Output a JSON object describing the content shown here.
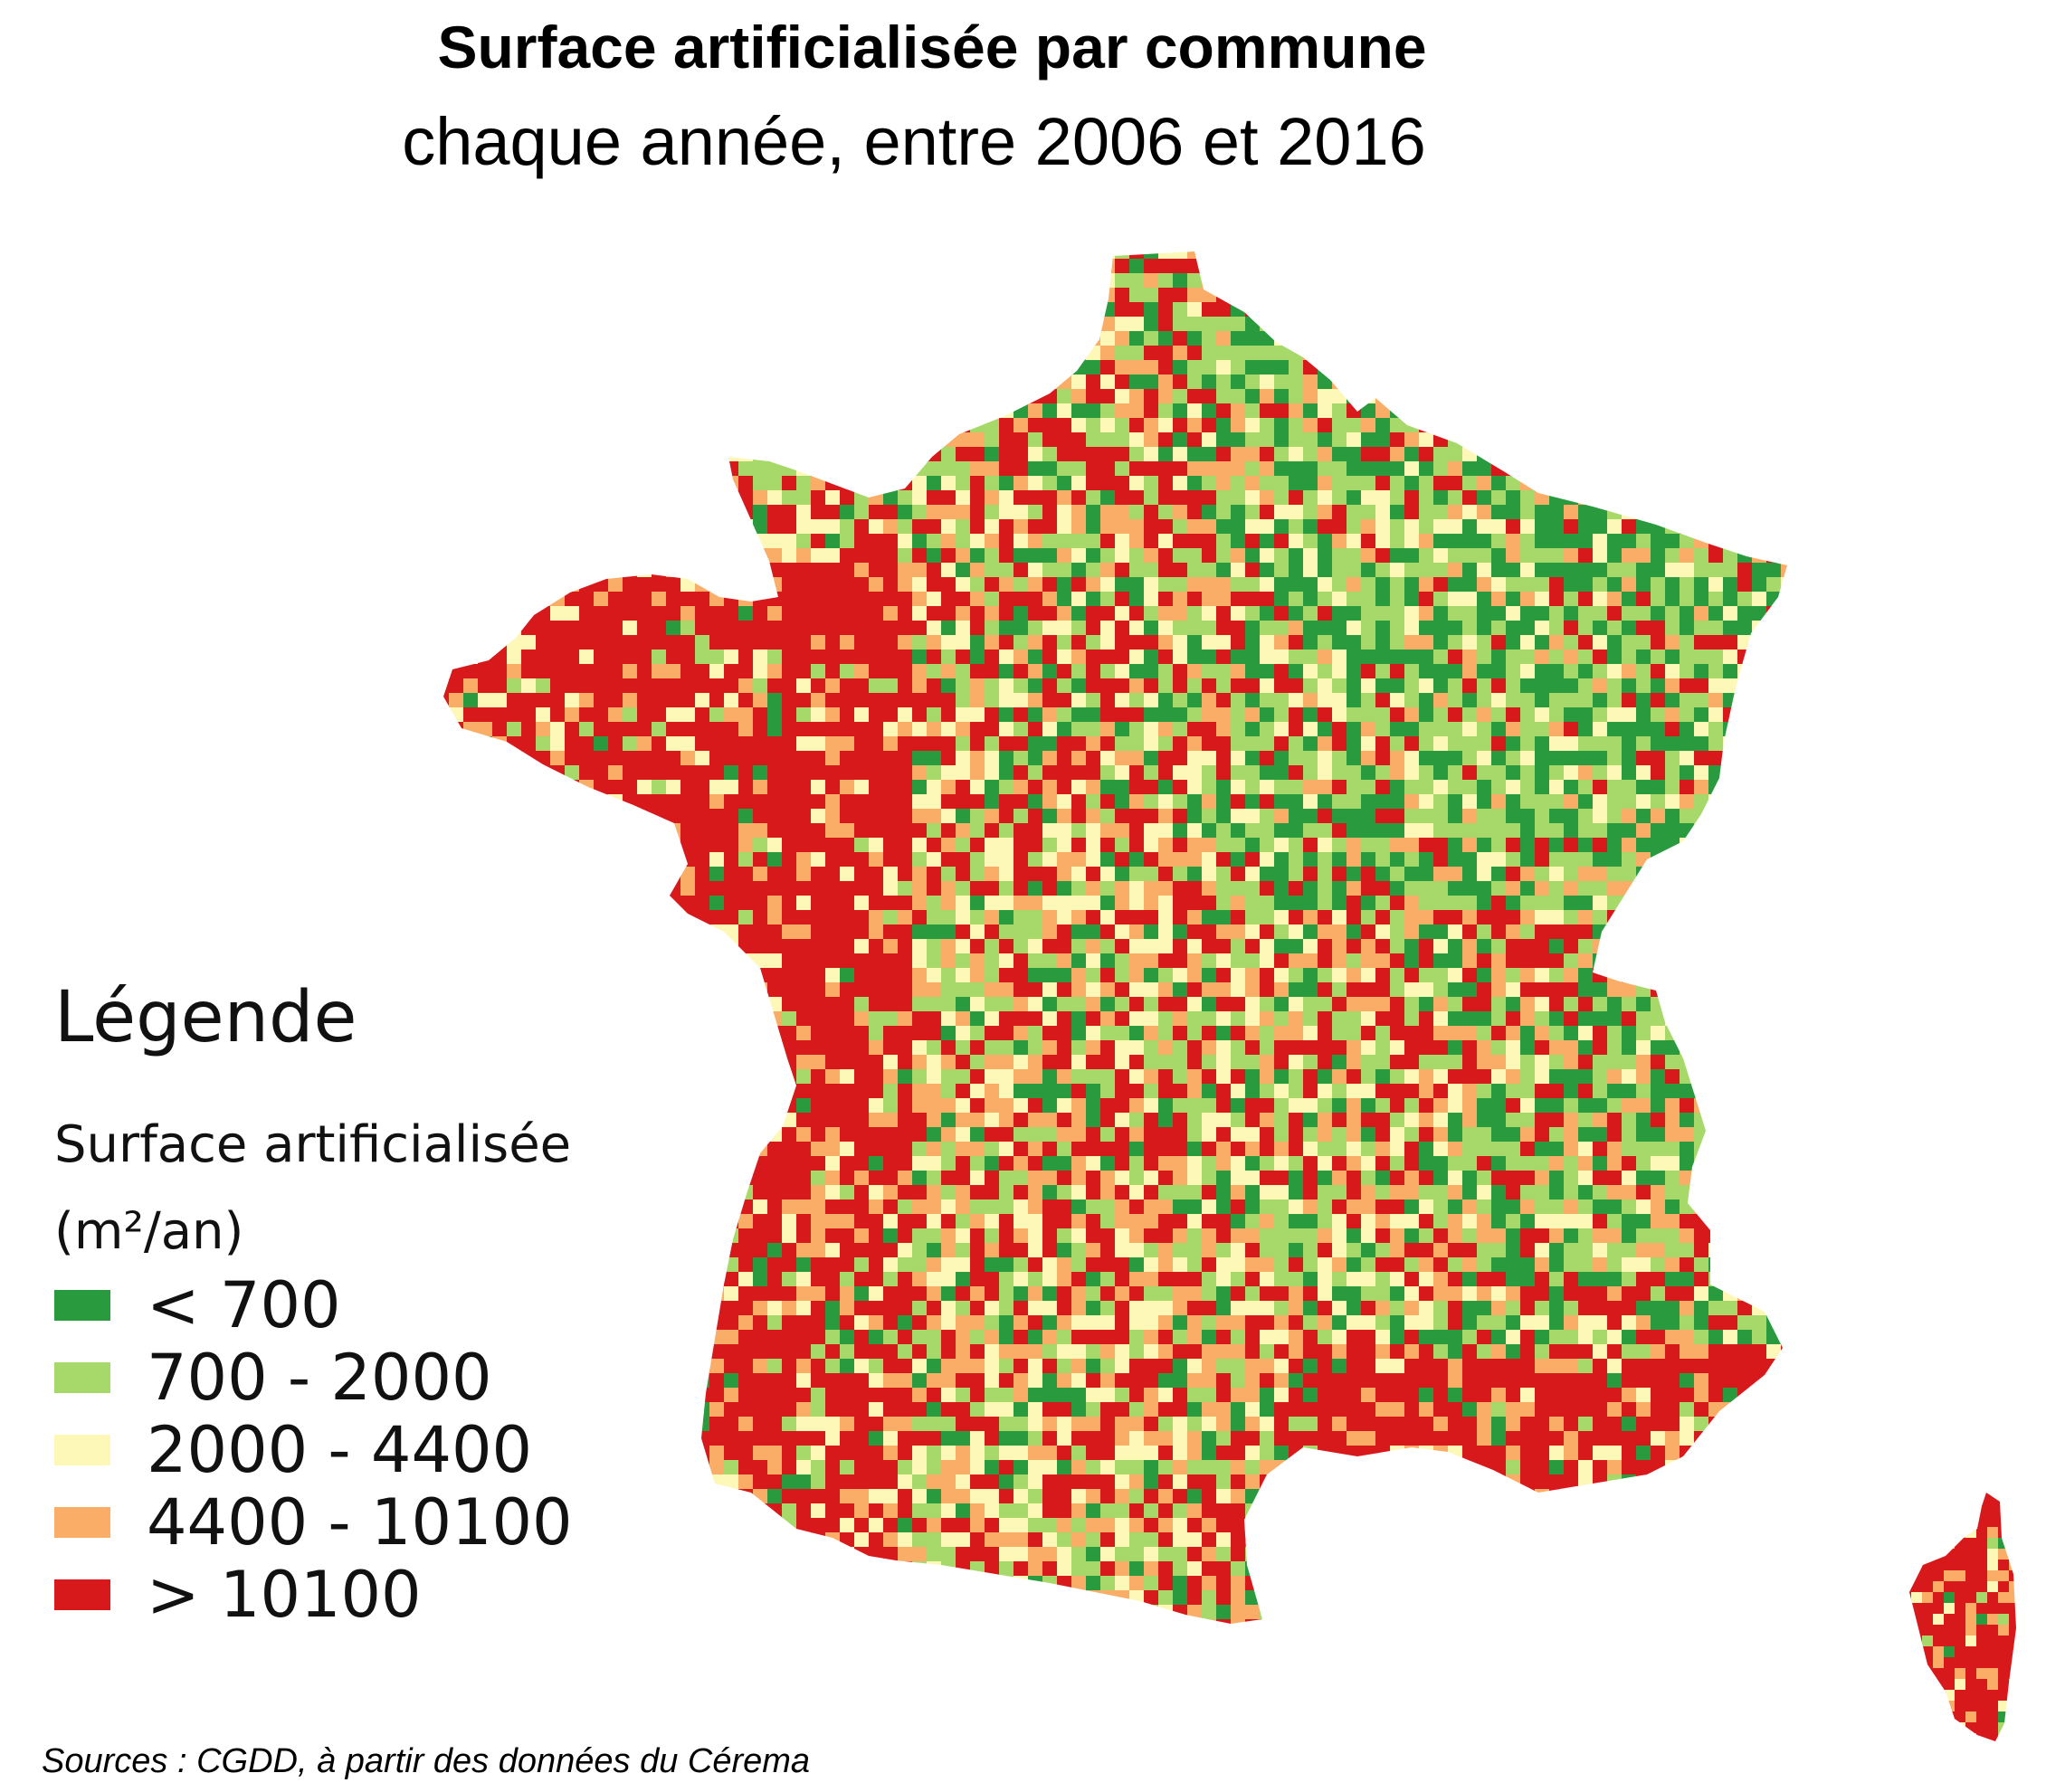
{
  "title": "Surface artificialisée par commune",
  "subtitle": "chaque année, entre 2006 et 2016",
  "legend": {
    "heading": "Légende",
    "variable": "Surface artificialisée",
    "unit": "(m²/an)",
    "classes": [
      {
        "label": "< 700",
        "color": "#2a9a3e"
      },
      {
        "label": "700 - 2000",
        "color": "#a6d96a"
      },
      {
        "label": "2000 - 4400",
        "color": "#fdf7b8"
      },
      {
        "label": "4400 - 10100",
        "color": "#f9ad66"
      },
      {
        "label": "> 10100",
        "color": "#d7191c"
      }
    ]
  },
  "source": "Sources : CGDD, à partir des données du Cérema"
}
